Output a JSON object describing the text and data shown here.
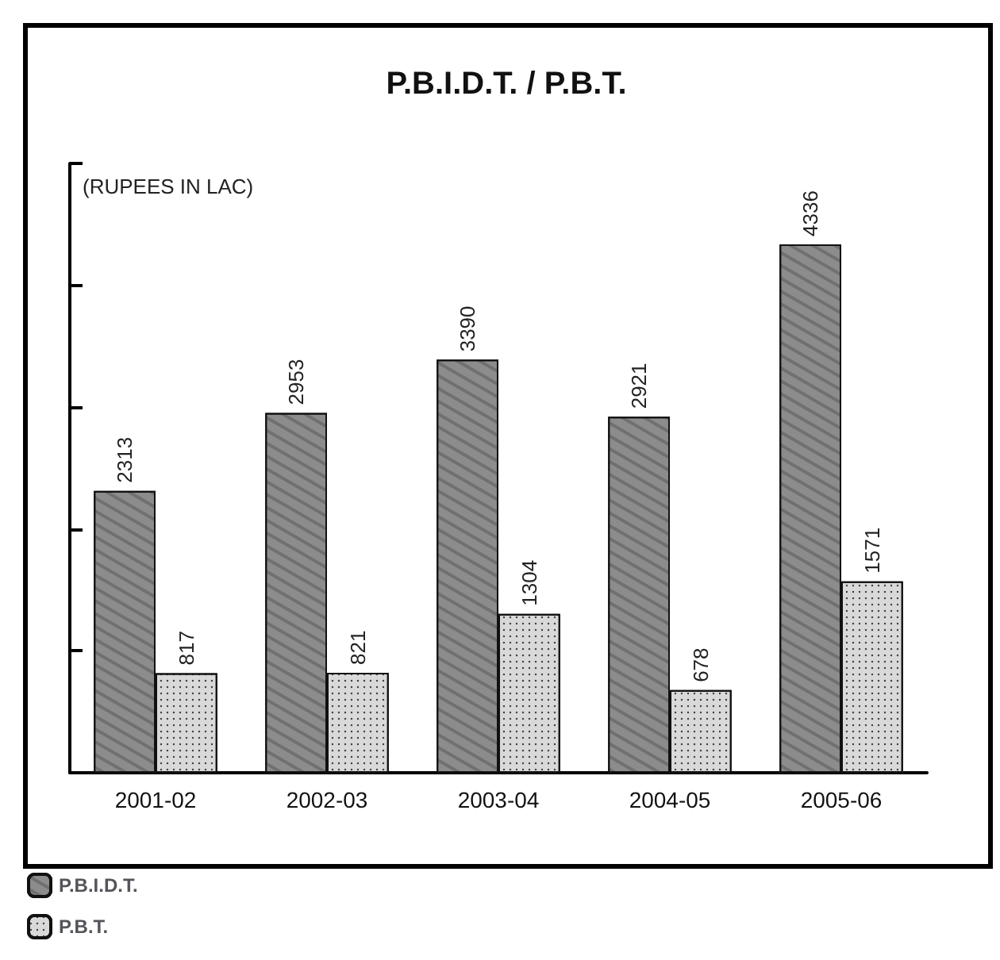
{
  "chart_data": {
    "type": "bar",
    "title": "P.B.I.D.T. / P.B.T.",
    "annotations": [
      "(RUPEES IN LAC)"
    ],
    "categories": [
      "2001-02",
      "2002-03",
      "2003-04",
      "2004-05",
      "2005-06"
    ],
    "series": [
      {
        "name": "P.B.I.D.T.",
        "color": "#8c8c8c",
        "values": [
          2313,
          2953,
          3390,
          2921,
          4336
        ]
      },
      {
        "name": "P.B.T.",
        "color": "#d9d9d9",
        "values": [
          817,
          821,
          1304,
          678,
          1571
        ]
      }
    ],
    "data_labels": true,
    "tick_labels": "x",
    "grid": false,
    "legend": "bottom left"
  }
}
